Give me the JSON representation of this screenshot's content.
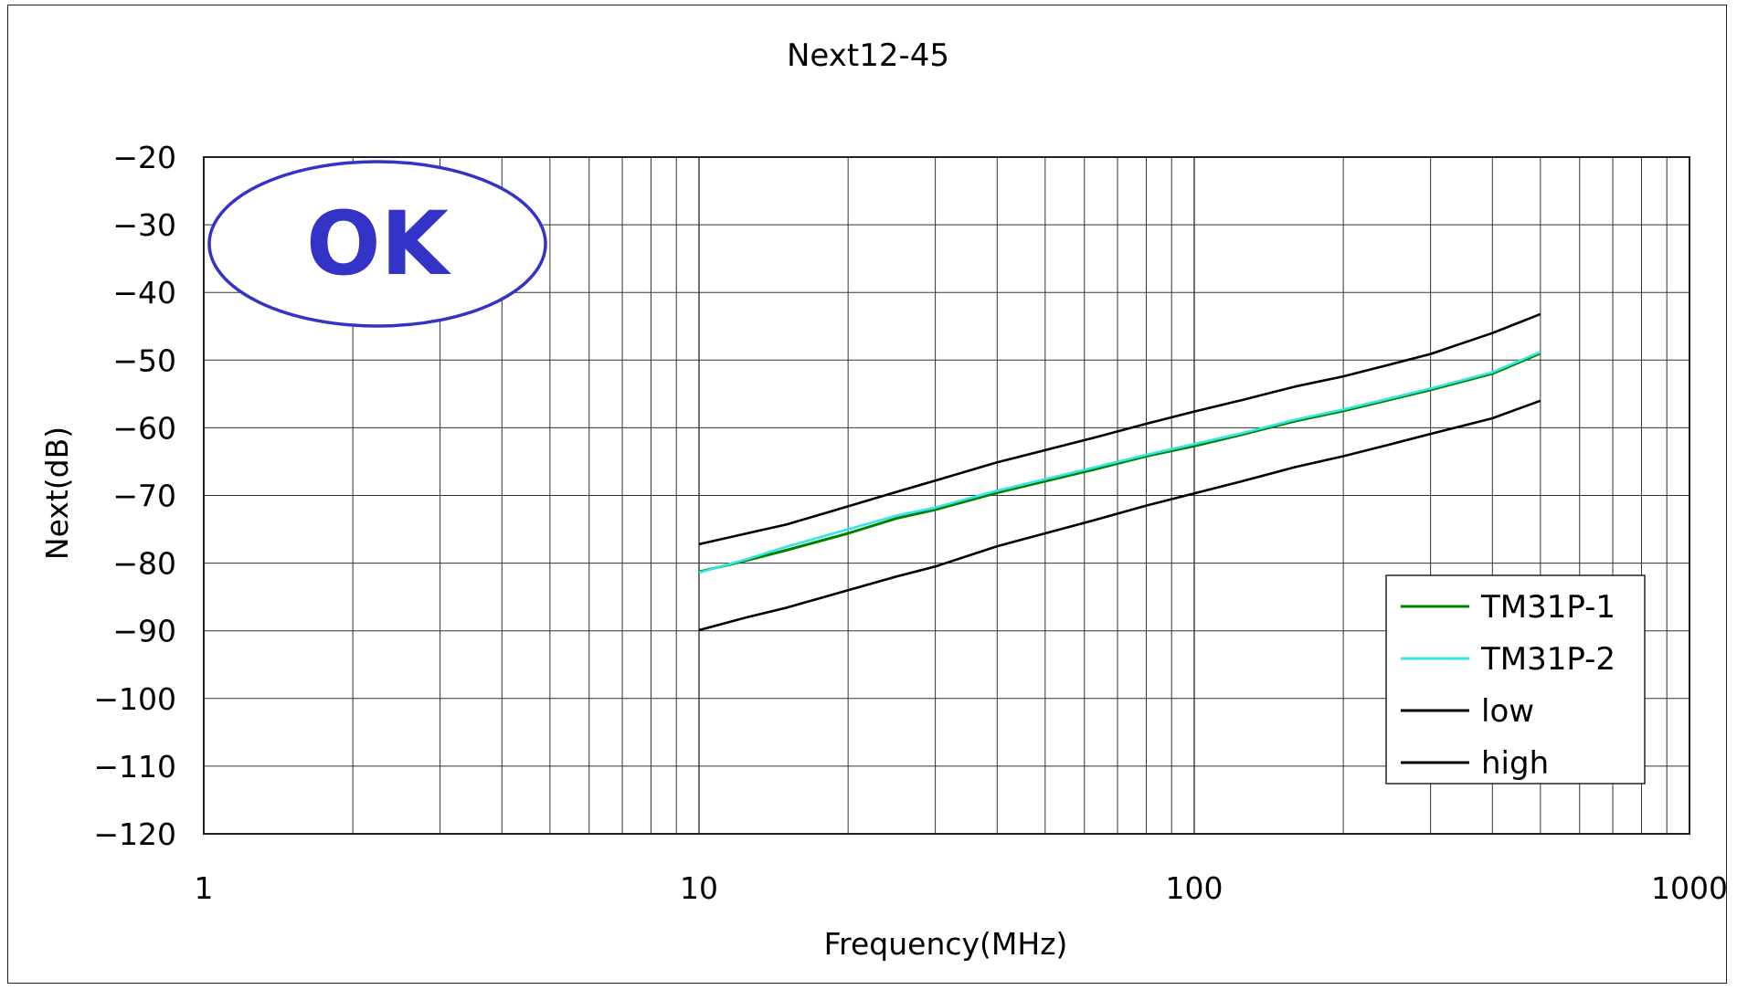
{
  "chart_data": {
    "type": "line",
    "title": "Next12-45",
    "xlabel": "Frequency(MHz)",
    "ylabel": "Next(dB)",
    "x_scale": "log",
    "xlim": [
      1,
      1000
    ],
    "ylim": [
      -120,
      -20
    ],
    "grid": true,
    "legend_position": "bottom-right",
    "x_tick_labels": [
      "1",
      "10",
      "100",
      "1000"
    ],
    "y_tick_labels": [
      "-20",
      "-30",
      "-40",
      "-50",
      "-60",
      "-70",
      "-80",
      "-90",
      "-100",
      "-110",
      "-120"
    ],
    "x": [
      10,
      12.5,
      15,
      20,
      25,
      30,
      40,
      50,
      62.5,
      80,
      100,
      125,
      160,
      200,
      250,
      300,
      400,
      500
    ],
    "series": [
      {
        "name": "TM31P-1",
        "color": "#008000",
        "values": [
          -81.3,
          -79.6,
          -78.1,
          -75.6,
          -73.4,
          -72.1,
          -69.6,
          -67.9,
          -66.2,
          -64.2,
          -62.7,
          -61.0,
          -59.0,
          -57.5,
          -55.8,
          -54.4,
          -52.0,
          -49.0
        ]
      },
      {
        "name": "TM31P-2",
        "color": "#33e6e6",
        "values": [
          -81.4,
          -79.4,
          -77.6,
          -75.0,
          -73.0,
          -71.8,
          -69.3,
          -67.6,
          -65.9,
          -64.0,
          -62.4,
          -60.8,
          -58.8,
          -57.3,
          -55.6,
          -54.2,
          -51.8,
          -48.8
        ]
      },
      {
        "name": "low",
        "color": "#000000",
        "values": [
          -77.2,
          -75.6,
          -74.3,
          -71.6,
          -69.5,
          -67.8,
          -65.1,
          -63.3,
          -61.5,
          -59.4,
          -57.6,
          -55.9,
          -53.9,
          -52.4,
          -50.6,
          -49.1,
          -46.0,
          -43.2
        ]
      },
      {
        "name": "high",
        "color": "#000000",
        "values": [
          -89.9,
          -88.0,
          -86.6,
          -84.0,
          -82.0,
          -80.5,
          -77.5,
          -75.6,
          -73.7,
          -71.5,
          -69.7,
          -67.9,
          -65.8,
          -64.2,
          -62.4,
          -60.9,
          -58.6,
          -56.0
        ]
      }
    ]
  },
  "badge": {
    "label": "OK",
    "color": "#3333c8"
  }
}
